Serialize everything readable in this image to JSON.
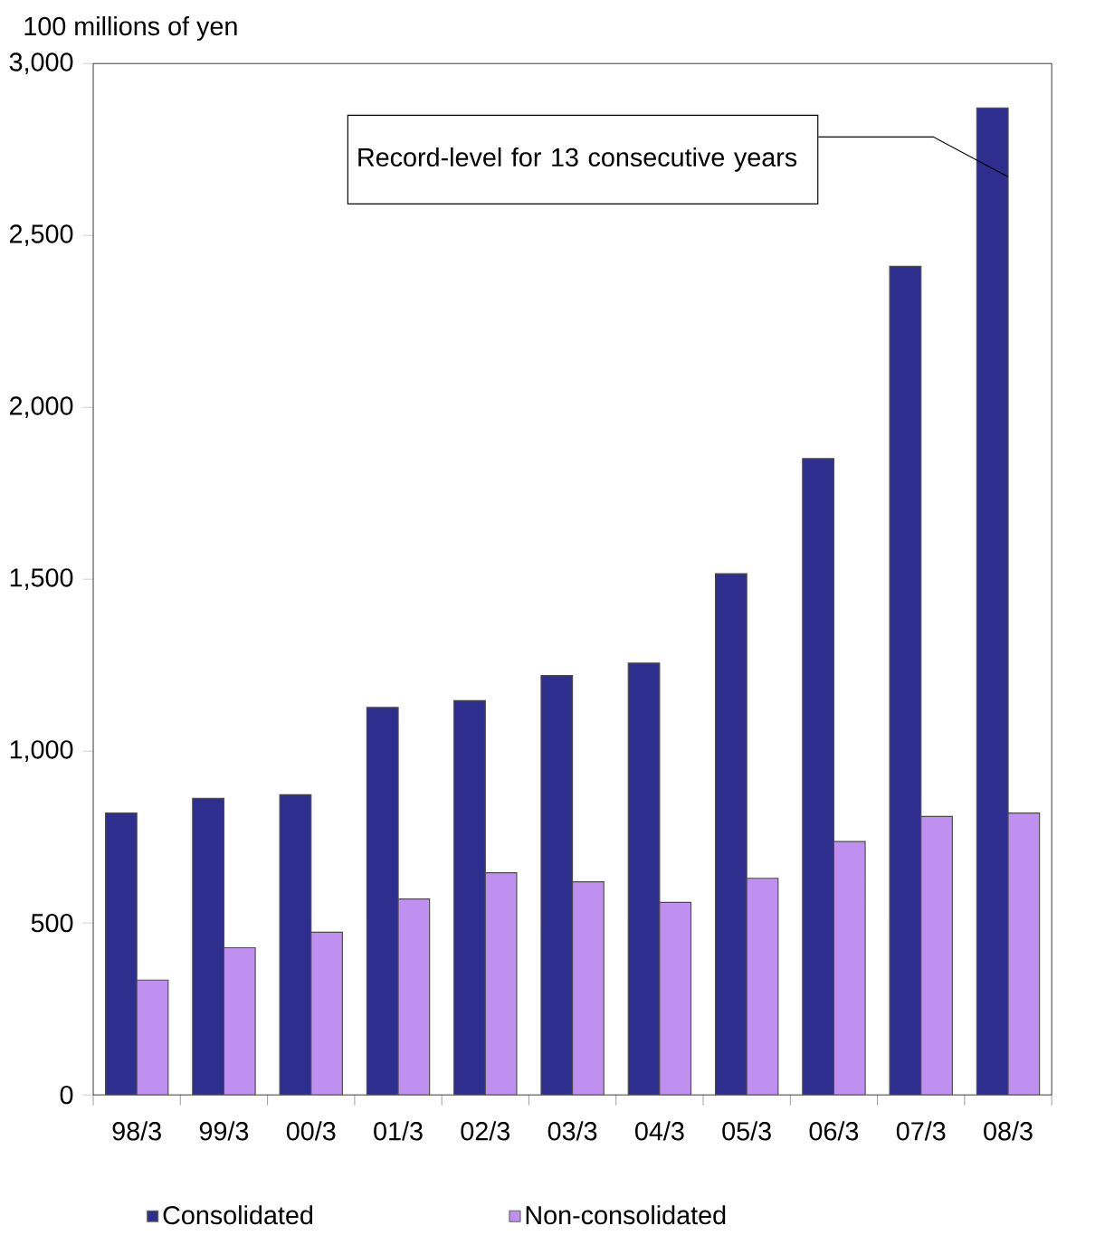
{
  "chart_data": {
    "type": "bar",
    "ylabel": "100 millions of yen",
    "categories": [
      "98/3",
      "99/3",
      "00/3",
      "01/3",
      "02/3",
      "03/3",
      "04/3",
      "05/3",
      "06/3",
      "07/3",
      "08/3"
    ],
    "series": [
      {
        "name": "Consolidated",
        "color": "#2e2e8e",
        "values": [
          820,
          863,
          873,
          1127,
          1147,
          1220,
          1256,
          1516,
          1851,
          2410,
          2871
        ]
      },
      {
        "name": "Non-consolidated",
        "color": "#c090f0",
        "values": [
          334,
          428,
          473,
          570,
          646,
          620,
          560,
          630,
          737,
          810,
          820
        ]
      }
    ],
    "ylim": [
      0,
      3000
    ],
    "yticks": [
      0,
      500,
      {
        "value": 1000,
        "label": "1,000"
      },
      {
        "value": 1500,
        "label": "1,500"
      },
      {
        "value": 2000,
        "label": "2,000"
      },
      {
        "value": 2500,
        "label": "2,500"
      },
      {
        "value": 3000,
        "label": "3,000"
      }
    ],
    "annotations": [
      {
        "text": "Record-level for 13 consecutive years",
        "x": "08/3",
        "y": 2670
      }
    ],
    "legend": "bottom",
    "grid": false
  }
}
